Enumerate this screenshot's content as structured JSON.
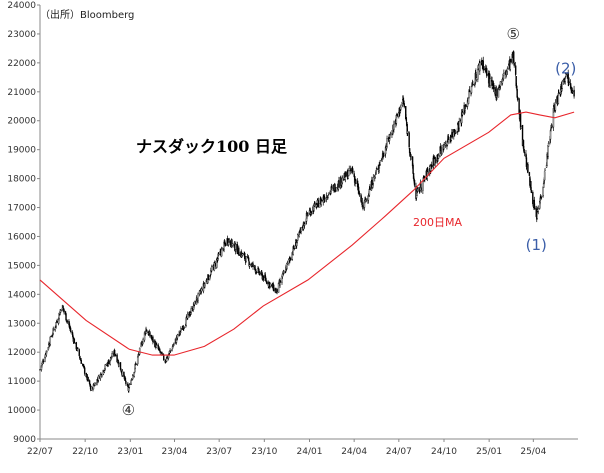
{
  "source": "（出所）Bloomberg",
  "chart_data": {
    "type": "candlestick",
    "title": "ナスダック100 日足",
    "xlabel": "",
    "ylabel": "",
    "ylim": [
      9000,
      24000
    ],
    "yticks": [
      9000,
      10000,
      11000,
      12000,
      13000,
      14000,
      15000,
      16000,
      17000,
      18000,
      19000,
      20000,
      21000,
      22000,
      23000,
      24000
    ],
    "xticks": [
      "22/07",
      "22/10",
      "23/01",
      "23/04",
      "23/07",
      "23/10",
      "24/01",
      "24/04",
      "24/07",
      "24/10",
      "25/01",
      "25/04"
    ],
    "grid": false,
    "price_path": [
      {
        "x": "2022-07-01",
        "y": 11400
      },
      {
        "x": "2022-08-15",
        "y": 13600
      },
      {
        "x": "2022-10-13",
        "y": 10700
      },
      {
        "x": "2022-11-30",
        "y": 12000
      },
      {
        "x": "2022-12-28",
        "y": 10700
      },
      {
        "x": "2023-02-02",
        "y": 12800
      },
      {
        "x": "2023-03-13",
        "y": 11700
      },
      {
        "x": "2023-05-01",
        "y": 13300
      },
      {
        "x": "2023-07-18",
        "y": 15900
      },
      {
        "x": "2023-10-26",
        "y": 14100
      },
      {
        "x": "2023-12-29",
        "y": 16800
      },
      {
        "x": "2024-03-28",
        "y": 18300
      },
      {
        "x": "2024-04-19",
        "y": 17000
      },
      {
        "x": "2024-07-10",
        "y": 20700
      },
      {
        "x": "2024-08-05",
        "y": 17400
      },
      {
        "x": "2024-09-06",
        "y": 18500
      },
      {
        "x": "2024-11-01",
        "y": 19900
      },
      {
        "x": "2024-12-16",
        "y": 22100
      },
      {
        "x": "2025-01-13",
        "y": 20900
      },
      {
        "x": "2025-02-19",
        "y": 22200
      },
      {
        "x": "2025-03-10",
        "y": 19300
      },
      {
        "x": "2025-04-07",
        "y": 16600
      },
      {
        "x": "2025-04-21",
        "y": 17800
      },
      {
        "x": "2025-05-12",
        "y": 20300
      },
      {
        "x": "2025-06-06",
        "y": 21700
      },
      {
        "x": "2025-06-23",
        "y": 21000
      }
    ],
    "series": [
      {
        "name": "200日MA",
        "color": "#e8262c",
        "points": [
          {
            "x": "2022-07-01",
            "y": 14500
          },
          {
            "x": "2022-10-03",
            "y": 13100
          },
          {
            "x": "2022-12-30",
            "y": 12100
          },
          {
            "x": "2023-02-15",
            "y": 11900
          },
          {
            "x": "2023-03-31",
            "y": 11900
          },
          {
            "x": "2023-06-01",
            "y": 12200
          },
          {
            "x": "2023-07-31",
            "y": 12800
          },
          {
            "x": "2023-09-29",
            "y": 13600
          },
          {
            "x": "2023-12-29",
            "y": 14500
          },
          {
            "x": "2024-03-28",
            "y": 15700
          },
          {
            "x": "2024-06-03",
            "y": 16700
          },
          {
            "x": "2024-07-31",
            "y": 17600
          },
          {
            "x": "2024-10-01",
            "y": 18700
          },
          {
            "x": "2024-12-31",
            "y": 19600
          },
          {
            "x": "2025-02-14",
            "y": 20200
          },
          {
            "x": "2025-03-17",
            "y": 20300
          },
          {
            "x": "2025-04-14",
            "y": 20200
          },
          {
            "x": "2025-05-15",
            "y": 20100
          },
          {
            "x": "2025-06-23",
            "y": 20300
          }
        ]
      }
    ],
    "annotations": [
      {
        "text": "④",
        "x": "2022-12-28",
        "y": 10000,
        "color": "#333333"
      },
      {
        "text": "⑤",
        "x": "2025-02-19",
        "y": 23000,
        "color": "#333333"
      },
      {
        "text": "(1)",
        "x": "2025-04-07",
        "y": 15700,
        "color": "#3b5ea8"
      },
      {
        "text": "(2)",
        "x": "2025-06-06",
        "y": 21800,
        "color": "#3b5ea8"
      }
    ]
  }
}
